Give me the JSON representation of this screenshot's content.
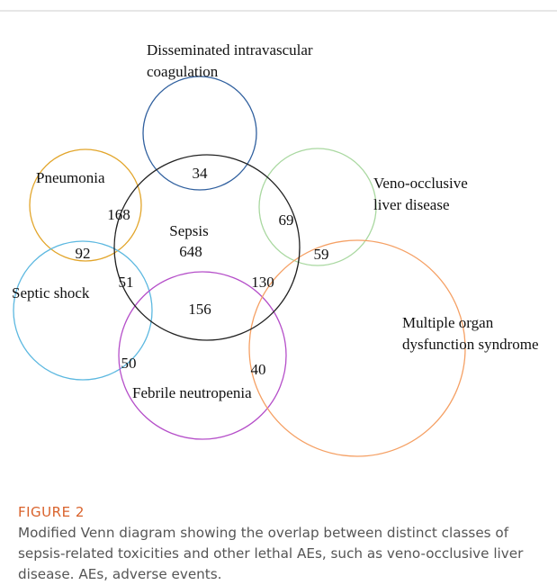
{
  "figure": {
    "sets": [
      {
        "lines": [
          "Disseminated intravascular",
          "coagulation"
        ]
      },
      {
        "lines": [
          "Pneumonia"
        ]
      },
      {
        "lines": [
          "Veno-occlusive",
          "liver disease"
        ]
      },
      {
        "lines": [
          "Septic shock"
        ]
      },
      {
        "lines": [
          "Multiple organ",
          "dysfunction syndrome"
        ]
      },
      {
        "lines": [
          "Febrile neutropenia"
        ]
      }
    ],
    "center": {
      "label": "Sepsis",
      "count": "648"
    },
    "regions": [
      "34",
      "168",
      "69",
      "92",
      "59",
      "51",
      "130",
      "156",
      "50",
      "40"
    ],
    "caption": {
      "label": "FIGURE 2",
      "text": "Modified Venn diagram showing the overlap between distinct classes of sepsis-related toxicities and other lethal AEs, such as veno-occlusive liver disease. AEs, adverse events."
    }
  }
}
